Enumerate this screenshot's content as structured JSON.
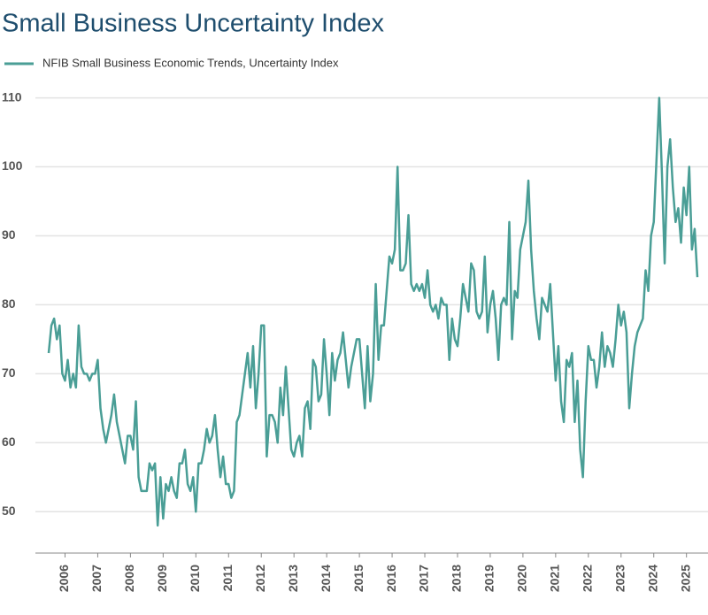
{
  "chart_data": {
    "type": "line",
    "title": "Small Business Uncertainty Index",
    "categories": [
      null,
      null,
      null,
      null,
      null,
      null,
      "2006",
      null,
      null,
      null,
      null,
      null,
      null,
      null,
      null,
      null,
      null,
      null,
      "2007",
      null,
      null,
      null,
      null,
      null,
      null,
      null,
      null,
      null,
      null,
      null,
      "2008",
      null,
      null,
      null,
      null,
      null,
      null,
      null,
      null,
      null,
      null,
      null,
      "2009",
      null,
      null,
      null,
      null,
      null,
      null,
      null,
      null,
      null,
      null,
      null,
      "2010",
      null,
      null,
      null,
      null,
      null,
      null,
      null,
      null,
      null,
      null,
      null,
      "2011",
      null,
      null,
      null,
      null,
      null,
      null,
      null,
      null,
      null,
      null,
      null,
      "2012",
      null,
      null,
      null,
      null,
      null,
      null,
      null,
      null,
      null,
      null,
      null,
      "2013",
      null,
      null,
      null,
      null,
      null,
      null,
      null,
      null,
      null,
      null,
      null,
      "2014",
      null,
      null,
      null,
      null,
      null,
      null,
      null,
      null,
      null,
      null,
      null,
      "2015",
      null,
      null,
      null,
      null,
      null,
      null,
      null,
      null,
      null,
      null,
      null,
      "2016",
      null,
      null,
      null,
      null,
      null,
      null,
      null,
      null,
      null,
      null,
      null,
      "2017",
      null,
      null,
      null,
      null,
      null,
      null,
      null,
      null,
      null,
      null,
      null,
      "2018",
      null,
      null,
      null,
      null,
      null,
      null,
      null,
      null,
      null,
      null,
      null,
      "2019",
      null,
      null,
      null,
      null,
      null,
      null,
      null,
      null,
      null,
      null,
      null,
      "2020",
      null,
      null,
      null,
      null,
      null,
      null,
      null,
      null,
      null,
      null,
      null,
      "2021",
      null,
      null,
      null,
      null,
      null,
      null,
      null,
      null,
      null,
      null,
      null,
      "2022",
      null,
      null,
      null,
      null,
      null,
      null,
      null,
      null,
      null,
      null,
      null,
      "2023",
      null,
      null,
      null,
      null,
      null,
      null,
      null,
      null,
      null,
      null,
      null,
      "2024",
      null,
      null,
      null,
      null,
      null,
      null,
      null,
      null,
      null,
      null,
      null,
      "2025",
      null,
      null,
      null,
      null
    ],
    "series": [
      {
        "name": "NFIB Small Business Economic Trends, Uncertainty Index",
        "color": "#4a9e96",
        "values": [
          73,
          77,
          78,
          75,
          77,
          70,
          69,
          72,
          68,
          70,
          68,
          77,
          71,
          70,
          70,
          69,
          70,
          70,
          72,
          65,
          62,
          60,
          62,
          64,
          67,
          63,
          61,
          59,
          57,
          61,
          61,
          59,
          66,
          55,
          53,
          53,
          53,
          57,
          56,
          57,
          48,
          55,
          49,
          54,
          53,
          55,
          53,
          52,
          57,
          57,
          59,
          54,
          53,
          55,
          50,
          57,
          57,
          59,
          62,
          60,
          61,
          64,
          59,
          55,
          58,
          54,
          54,
          52,
          53,
          63,
          64,
          67,
          70,
          73,
          68,
          74,
          65,
          70,
          77,
          77,
          58,
          64,
          64,
          63,
          60,
          68,
          64,
          71,
          65,
          59,
          58,
          60,
          61,
          58,
          65,
          66,
          62,
          72,
          71,
          66,
          67,
          75,
          70,
          64,
          73,
          69,
          72,
          73,
          76,
          72,
          68,
          71,
          73,
          75,
          75,
          70,
          65,
          74,
          66,
          70,
          83,
          72,
          77,
          77,
          82,
          87,
          86,
          88,
          100,
          85,
          85,
          86,
          93,
          83,
          82,
          83,
          82,
          83,
          81,
          85,
          80,
          79,
          80,
          78,
          81,
          80,
          80,
          72,
          78,
          75,
          74,
          78,
          83,
          81,
          79,
          86,
          85,
          79,
          78,
          79,
          87,
          76,
          80,
          82,
          78,
          72,
          80,
          81,
          80,
          92,
          75,
          82,
          81,
          88,
          90,
          92,
          98,
          88,
          82,
          78,
          75,
          81,
          80,
          79,
          83,
          76,
          69,
          74,
          66,
          63,
          72,
          71,
          73,
          63,
          69,
          59,
          55,
          66,
          74,
          72,
          72,
          68,
          71,
          76,
          71,
          74,
          73,
          71,
          75,
          80,
          77,
          79,
          76,
          65,
          70,
          74,
          76,
          77,
          78,
          85,
          82,
          90,
          92,
          101,
          110,
          99,
          86,
          100,
          104,
          97,
          92,
          94,
          89,
          97,
          93,
          100,
          88,
          91,
          84
        ]
      }
    ],
    "ylim": [
      44,
      112
    ],
    "yticks": [
      50,
      60,
      70,
      80,
      90,
      100,
      110
    ],
    "grid": true
  }
}
